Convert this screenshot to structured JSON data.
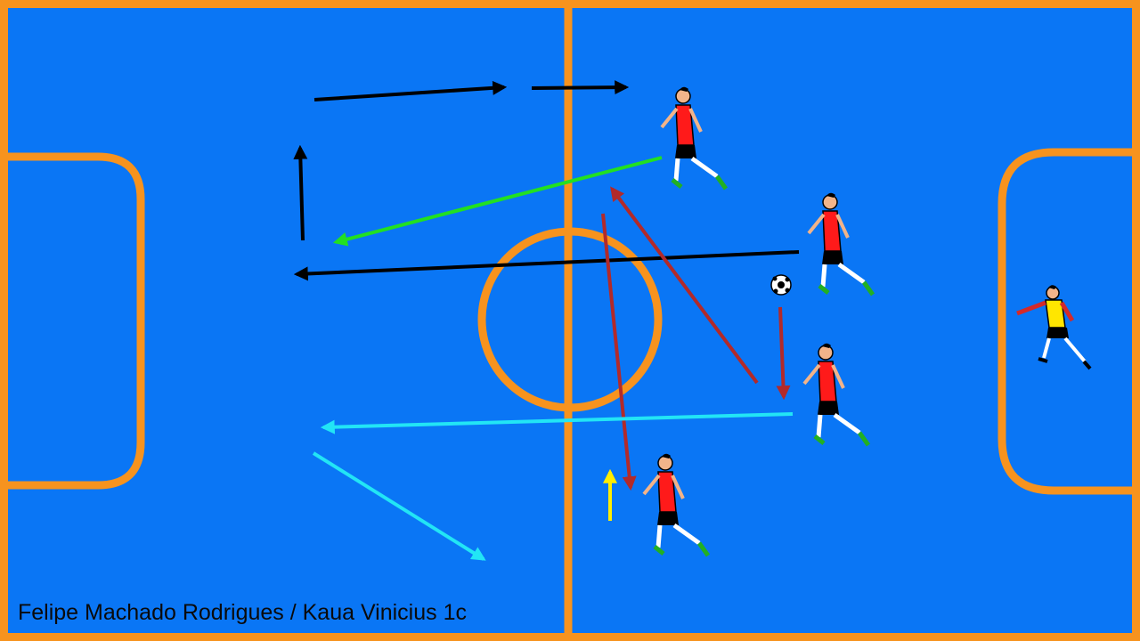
{
  "court": {
    "surface_color": "#0a76f5",
    "line_color": "#f7931e"
  },
  "players": [
    {
      "name": "attacker-top",
      "shirt_color": "#ff1a1a",
      "shorts_color": "#000000"
    },
    {
      "name": "attacker-right-top",
      "shirt_color": "#ff1a1a",
      "shorts_color": "#000000"
    },
    {
      "name": "attacker-right-bottom",
      "shirt_color": "#ff1a1a",
      "shorts_color": "#000000"
    },
    {
      "name": "attacker-bottom",
      "shirt_color": "#ff1a1a",
      "shorts_color": "#000000"
    },
    {
      "name": "goalkeeper",
      "shirt_color": "#ffe600",
      "shorts_color": "#000000"
    }
  ],
  "arrow_colors": {
    "black": "#000000",
    "green": "#22e022",
    "dark_red": "#b22a2a",
    "cyan": "#22e5f5",
    "yellow": "#ffee00"
  },
  "credit": "Felipe Machado Rodrigues / Kaua Vinicius 1c"
}
